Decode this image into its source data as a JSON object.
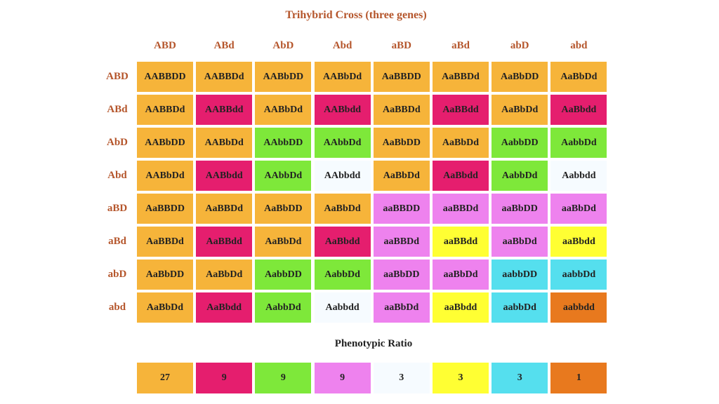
{
  "title": "Trihybrid Cross (three genes)",
  "columns": [
    "ABD",
    "ABd",
    "AbD",
    "Abd",
    "aBD",
    "aBd",
    "abD",
    "abd"
  ],
  "rows": [
    {
      "label": "ABD",
      "cells": [
        "AABBDD",
        "AABBDd",
        "AABbDD",
        "AABbDd",
        "AaBBDD",
        "AaBBDd",
        "AaBbDD",
        "AaBbDd"
      ]
    },
    {
      "label": "ABd",
      "cells": [
        "AABBDd",
        "AABBdd",
        "AABbDd",
        "AABbdd",
        "AaBBDd",
        "AaBBdd",
        "AaBbDd",
        "AaBbdd"
      ]
    },
    {
      "label": "AbD",
      "cells": [
        "AABbDD",
        "AABbDd",
        "AAbbDD",
        "AAbbDd",
        "AaBbDD",
        "AaBbDd",
        "AabbDD",
        "AabbDd"
      ]
    },
    {
      "label": "Abd",
      "cells": [
        "AABbDd",
        "AABbdd",
        "AAbbDd",
        "AAbbdd",
        "AaBbDd",
        "AaBbdd",
        "AabbDd",
        "Aabbdd"
      ]
    },
    {
      "label": "aBD",
      "cells": [
        "AaBBDD",
        "AaBBDd",
        "AaBbDD",
        "AaBbDd",
        "aaBBDD",
        "aaBBDd",
        "aaBbDD",
        "aaBbDd"
      ]
    },
    {
      "label": "aBd",
      "cells": [
        "AaBBDd",
        "AaBBdd",
        "AaBbDd",
        "AaBbdd",
        "aaBBDd",
        "aaBBdd",
        "aaBbDd",
        "aaBbdd"
      ]
    },
    {
      "label": "abD",
      "cells": [
        "AaBbDD",
        "AaBbDd",
        "AabbDD",
        "AabbDd",
        "aaBbDD",
        "aaBbDd",
        "aabbDD",
        "aabbDd"
      ]
    },
    {
      "label": "abd",
      "cells": [
        "AaBbDd",
        "AaBbdd",
        "AabbDd",
        "Aabbdd",
        "aaBbDd",
        "aaBbdd",
        "aabbDd",
        "aabbdd"
      ]
    }
  ],
  "ratio": {
    "title": "Phenotypic Ratio",
    "items": [
      {
        "value": 27,
        "color": "#f6b43a"
      },
      {
        "value": 9,
        "color": "#e51e6e"
      },
      {
        "value": 9,
        "color": "#7ee83a"
      },
      {
        "value": 9,
        "color": "#ee82ee"
      },
      {
        "value": 3,
        "color": "#f6fbff"
      },
      {
        "value": 3,
        "color": "#ffff33"
      },
      {
        "value": 3,
        "color": "#55dfee"
      },
      {
        "value": 1,
        "color": "#e8791e"
      }
    ]
  }
}
